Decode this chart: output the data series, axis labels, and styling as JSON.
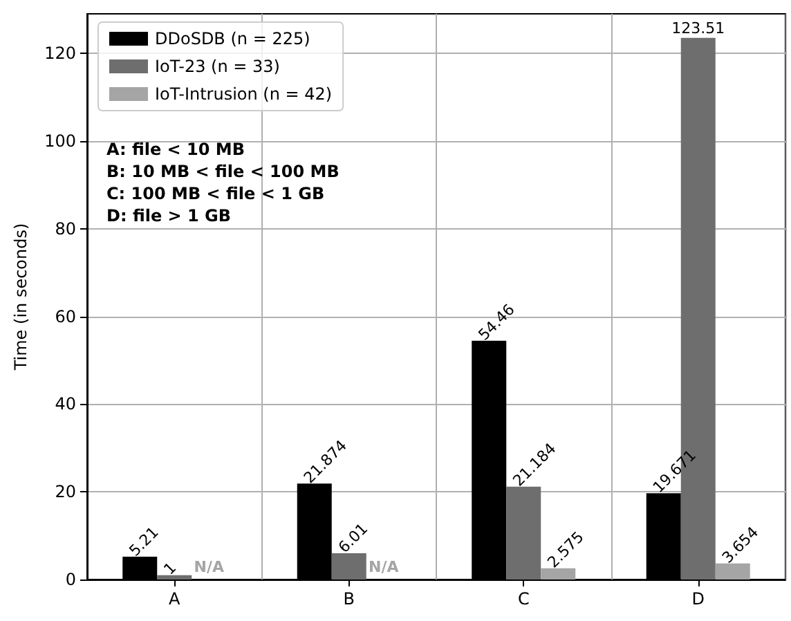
{
  "chart_data": {
    "type": "bar",
    "ylabel": "Time (in seconds)",
    "categories": [
      "A",
      "B",
      "C",
      "D"
    ],
    "series": [
      {
        "name": "DDoSDB (n = 225)",
        "color": "#000000",
        "values": [
          5.21,
          21.874,
          54.46,
          19.671
        ],
        "value_labels": [
          "5.21",
          "21.874",
          "54.46",
          "19.671"
        ]
      },
      {
        "name": "IoT-23 (n = 33)",
        "color": "#6e6e6e",
        "values": [
          1,
          6.01,
          21.184,
          123.51
        ],
        "value_labels": [
          "1",
          "6.01",
          "21.184",
          "123.51"
        ]
      },
      {
        "name": "IoT-Intrusion (n = 42)",
        "color": "#a5a5a5",
        "values": [
          null,
          null,
          2.575,
          3.654
        ],
        "value_labels": [
          "N/A",
          "N/A",
          "2.575",
          "3.654"
        ]
      }
    ],
    "annotations": [
      "A: file < 10 MB",
      "B: 10 MB < file < 100 MB",
      "C: 100 MB < file < 1 GB",
      "D: file > 1 GB"
    ],
    "ylim": [
      0,
      129
    ],
    "yticks": [
      0,
      20,
      40,
      60,
      80,
      100,
      120
    ],
    "grid": true,
    "legend": "top left"
  }
}
